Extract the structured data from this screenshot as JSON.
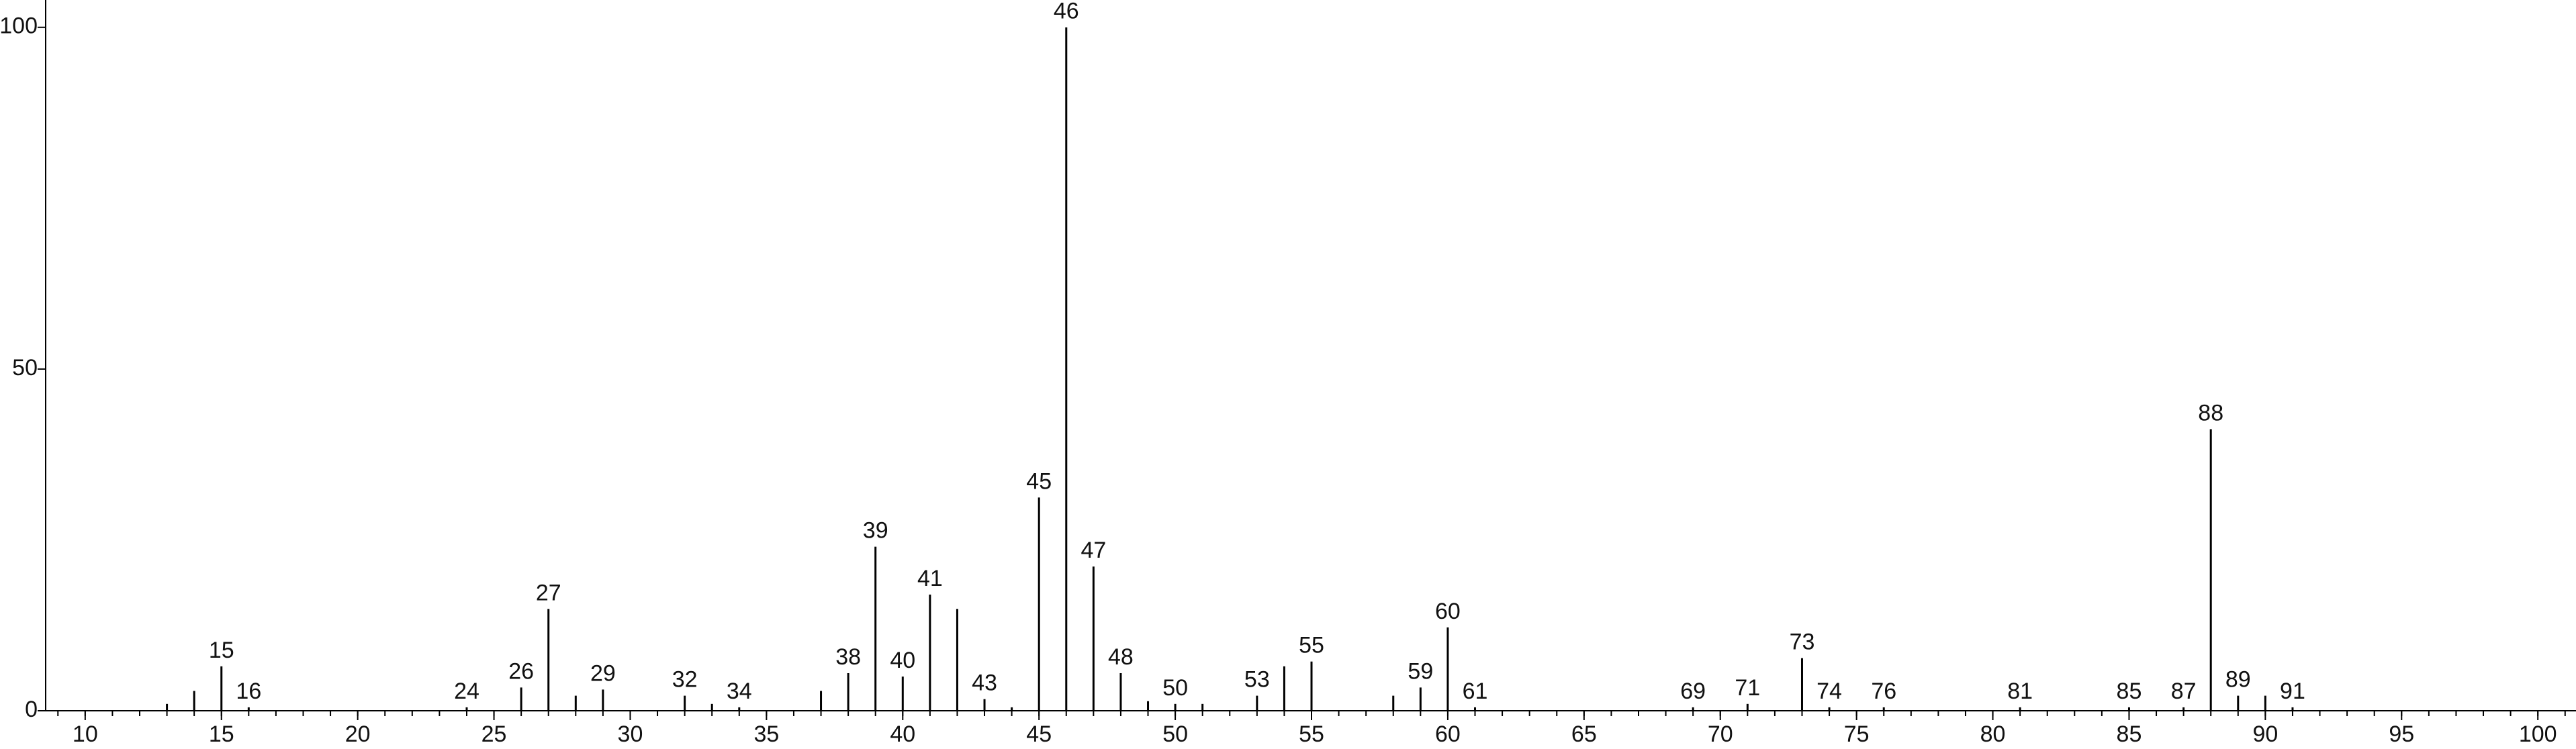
{
  "chart_data": {
    "type": "bar",
    "x": [
      13,
      14,
      15,
      16,
      24,
      26,
      27,
      28,
      29,
      32,
      33,
      34,
      37,
      38,
      39,
      40,
      41,
      42,
      43,
      44,
      45,
      46,
      47,
      48,
      49,
      50,
      51,
      53,
      54,
      55,
      58,
      59,
      60,
      61,
      69,
      71,
      73,
      74,
      76,
      81,
      85,
      87,
      88,
      89,
      90,
      91
    ],
    "values": [
      1,
      2.9,
      6.5,
      0.5,
      0.5,
      3.4,
      14.9,
      2.2,
      3.1,
      2.2,
      1,
      0.5,
      2.9,
      5.5,
      24,
      5,
      17,
      14.9,
      1.7,
      0.5,
      31.2,
      100,
      21.1,
      5.5,
      1.4,
      1,
      1,
      2.2,
      6.5,
      7.2,
      2.2,
      3.4,
      12.2,
      0.5,
      0.5,
      1,
      7.7,
      0.5,
      0.5,
      0.5,
      0.5,
      0.5,
      41.2,
      2.2,
      2.2,
      0.5
    ],
    "peak_labels": [
      null,
      null,
      15,
      16,
      24,
      26,
      27,
      null,
      29,
      32,
      null,
      34,
      null,
      38,
      39,
      40,
      41,
      null,
      43,
      null,
      45,
      46,
      47,
      48,
      null,
      50,
      null,
      53,
      null,
      55,
      null,
      59,
      60,
      61,
      69,
      71,
      73,
      74,
      76,
      81,
      85,
      87,
      88,
      89,
      null,
      91
    ],
    "color": "#000000",
    "xlim": [
      8.55,
      101.4
    ],
    "xticks": [
      10,
      15,
      20,
      25,
      30,
      35,
      40,
      45,
      50,
      55,
      60,
      65,
      70,
      75,
      80,
      85,
      90,
      95,
      100
    ],
    "ylim": [
      0,
      104
    ],
    "yticks": [
      0,
      50,
      100
    ]
  }
}
